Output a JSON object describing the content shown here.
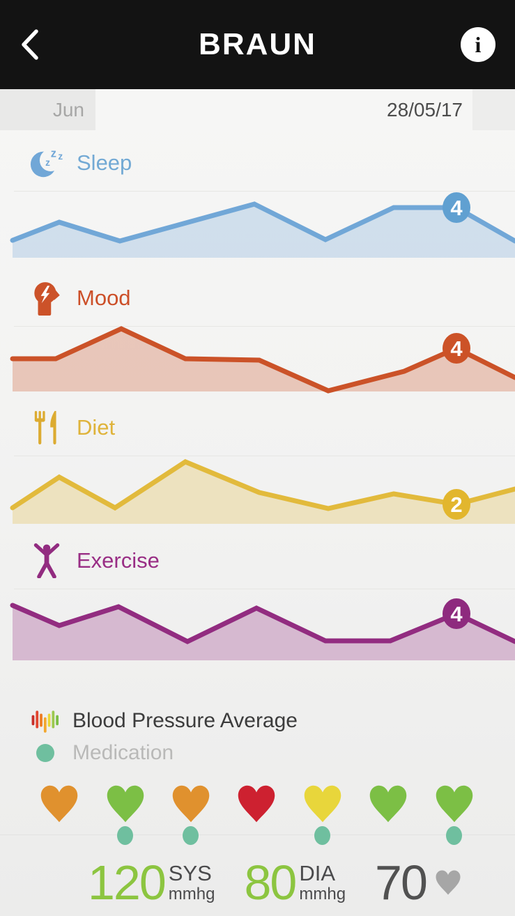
{
  "header": {
    "brand": "BRAUN",
    "info_glyph": "i"
  },
  "date_bar": {
    "month": "Jun",
    "date": "28/05/17"
  },
  "chart_data": [
    {
      "id": "sleep",
      "type": "area",
      "label": "Sleep",
      "icon": "moon-zzz-icon",
      "line_color": "#71a7d7",
      "badge_color": "#60a0d1",
      "label_color": "#72a9d4",
      "day_value": 4,
      "height": 100,
      "baseline": 95,
      "badge_index": 6,
      "points": [
        [
          18,
          70
        ],
        [
          85,
          44
        ],
        [
          172,
          71
        ],
        [
          365,
          18
        ],
        [
          467,
          69
        ],
        [
          565,
          23
        ],
        [
          655,
          23
        ],
        [
          739,
          71
        ]
      ]
    },
    {
      "id": "mood",
      "type": "area",
      "label": "Mood",
      "icon": "head-bolt-icon",
      "line_color": "#cb5228",
      "badge_color": "#cc5227",
      "label_color": "#cc4f28",
      "day_value": 4,
      "height": 100,
      "baseline": 93,
      "badge_index": 7,
      "points": [
        [
          18,
          46
        ],
        [
          80,
          46
        ],
        [
          174,
          3
        ],
        [
          266,
          46
        ],
        [
          372,
          48
        ],
        [
          471,
          92
        ],
        [
          580,
          64
        ],
        [
          655,
          31
        ],
        [
          739,
          73
        ]
      ]
    },
    {
      "id": "diet",
      "type": "area",
      "label": "Diet",
      "icon": "fork-knife-icon",
      "line_color": "#e2ba3c",
      "badge_color": "#e2b62e",
      "label_color": "#dfb33a",
      "day_value": 2,
      "height": 105,
      "baseline": 97,
      "badge_index": 7,
      "points": [
        [
          18,
          74
        ],
        [
          85,
          30
        ],
        [
          165,
          74
        ],
        [
          266,
          8
        ],
        [
          372,
          52
        ],
        [
          471,
          75
        ],
        [
          565,
          54
        ],
        [
          655,
          69
        ],
        [
          739,
          47
        ]
      ]
    },
    {
      "id": "exercise",
      "type": "area",
      "label": "Exercise",
      "icon": "figure-arms-up-icon",
      "line_color": "#922c80",
      "badge_color": "#8e2a7e",
      "label_color": "#992e85",
      "day_value": 4,
      "height": 110,
      "baseline": 102,
      "badge_index": 7,
      "points": [
        [
          18,
          23
        ],
        [
          85,
          52
        ],
        [
          170,
          25
        ],
        [
          269,
          75
        ],
        [
          368,
          27
        ],
        [
          467,
          74
        ],
        [
          560,
          74
        ],
        [
          655,
          35
        ],
        [
          739,
          75
        ]
      ]
    }
  ],
  "legend": {
    "blood_pressure_label": "Blood Pressure Average",
    "medication_label": "Medication",
    "medication_color": "#6fbf9f",
    "bp_bar_colors": [
      "#c62f2a",
      "#e2452e",
      "#ed7d23",
      "#f2a72e",
      "#ead73a",
      "#9cc84f",
      "#7cbf45"
    ]
  },
  "hearts": {
    "days": [
      {
        "color": "#e0912e",
        "medication": false
      },
      {
        "color": "#7cbf45",
        "medication": true
      },
      {
        "color": "#e0912e",
        "medication": true
      },
      {
        "color": "#cd2130",
        "medication": false
      },
      {
        "color": "#e8d63b",
        "medication": true
      },
      {
        "color": "#7cbf45",
        "medication": false
      },
      {
        "color": "#7cbf45",
        "medication": true
      }
    ]
  },
  "stats": {
    "systolic": {
      "value": "120",
      "label": "SYS",
      "unit": "mmhg",
      "value_color": "#8cc540"
    },
    "diastolic": {
      "value": "80",
      "label": "DIA",
      "unit": "mmhg",
      "value_color": "#8cc540"
    },
    "pulse": {
      "value": "70",
      "value_color": "#515151",
      "heart_color": "#a6a6a6"
    }
  }
}
